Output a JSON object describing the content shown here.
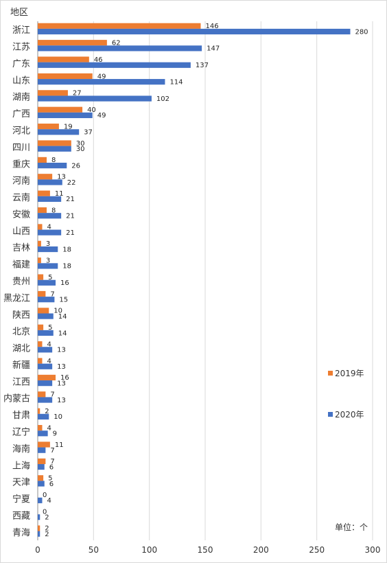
{
  "chart_data": {
    "type": "bar",
    "orientation": "horizontal",
    "category_axis_title": "地区",
    "categories": [
      "浙江",
      "江苏",
      "广东",
      "山东",
      "湖南",
      "广西",
      "河北",
      "四川",
      "重庆",
      "河南",
      "云南",
      "安徽",
      "山西",
      "吉林",
      "福建",
      "贵州",
      "黑龙江",
      "陕西",
      "北京",
      "湖北",
      "新疆",
      "江西",
      "内蒙古",
      "甘肃",
      "辽宁",
      "海南",
      "上海",
      "天津",
      "宁夏",
      "西藏",
      "青海"
    ],
    "series": [
      {
        "name": "2019年",
        "color": "#ED7D31",
        "values": [
          146,
          62,
          46,
          49,
          27,
          40,
          19,
          30,
          8,
          13,
          11,
          8,
          4,
          3,
          3,
          5,
          7,
          10,
          5,
          4,
          4,
          16,
          7,
          2,
          4,
          11,
          7,
          5,
          0,
          0,
          2
        ]
      },
      {
        "name": "2020年",
        "color": "#4472C4",
        "values": [
          280,
          147,
          137,
          114,
          102,
          49,
          37,
          30,
          26,
          22,
          21,
          21,
          21,
          18,
          18,
          16,
          15,
          14,
          14,
          13,
          13,
          13,
          13,
          10,
          9,
          7,
          6,
          6,
          4,
          2,
          2
        ]
      }
    ],
    "xlim": [
      0,
      300
    ],
    "xticks": [
      0,
      50,
      100,
      150,
      200,
      250,
      300
    ],
    "grid": true,
    "legend_position": "right",
    "unit_note": "单位：个"
  }
}
